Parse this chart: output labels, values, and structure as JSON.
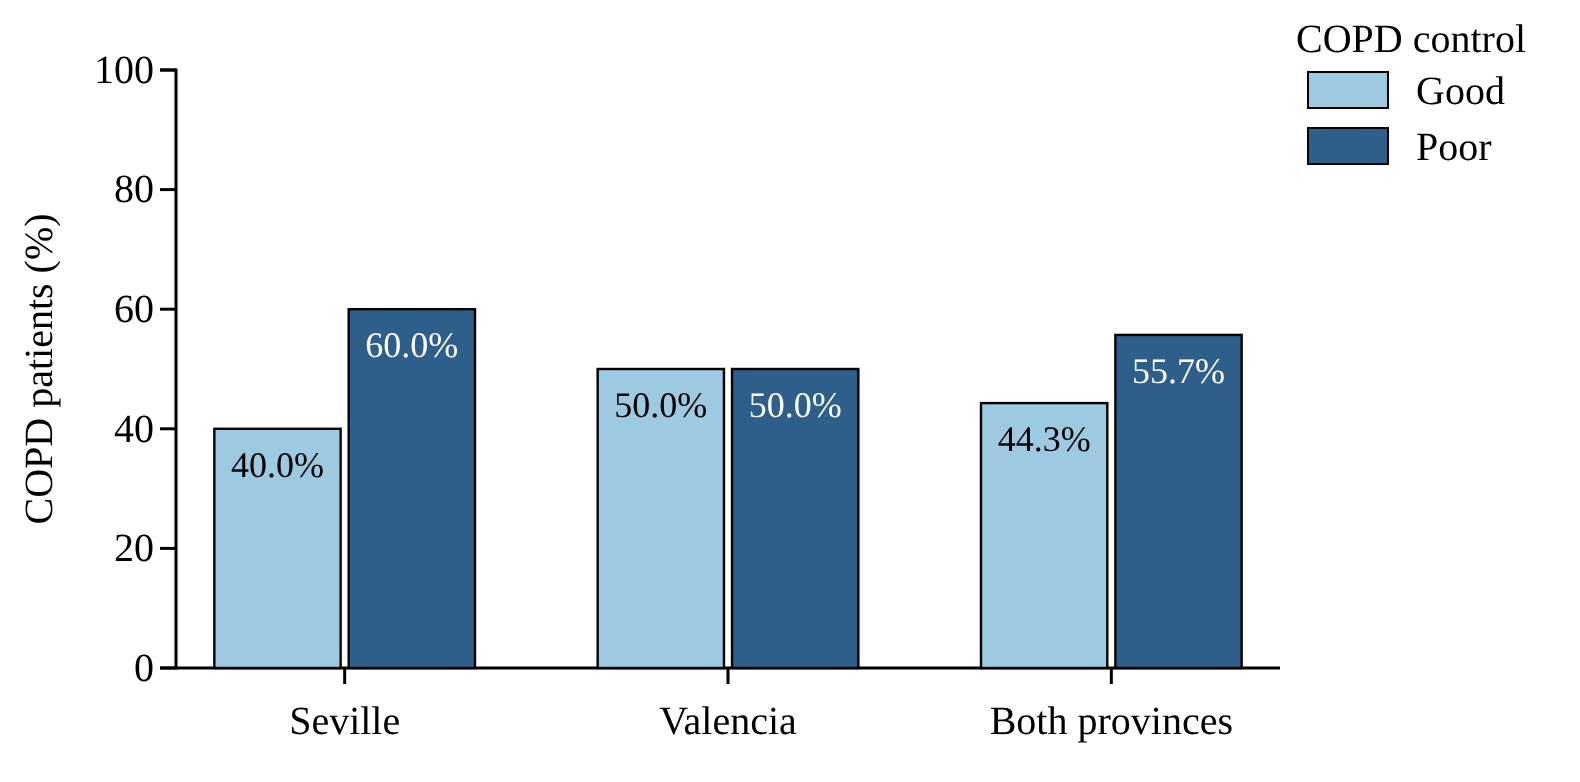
{
  "chart_data": {
    "type": "bar",
    "ylabel": "COPD patients  (%)",
    "legend_title": "COPD control",
    "legend": "top right",
    "grid": false,
    "categories": [
      "Seville",
      "Valencia",
      "Both provinces"
    ],
    "ylim": [
      0,
      100
    ],
    "yticks": [
      0,
      20,
      40,
      60,
      80,
      100
    ],
    "series": [
      {
        "name": "Good",
        "color": "#9ecae1",
        "values": [
          40.0,
          50.0,
          44.3
        ],
        "value_labels": [
          "40.0%",
          "50.0%",
          "44.3%"
        ]
      },
      {
        "name": "Poor",
        "color": "#2e5f8a",
        "values": [
          60.0,
          50.0,
          55.7
        ],
        "value_labels": [
          "60.0%",
          "50.0%",
          "55.7%"
        ]
      }
    ]
  }
}
